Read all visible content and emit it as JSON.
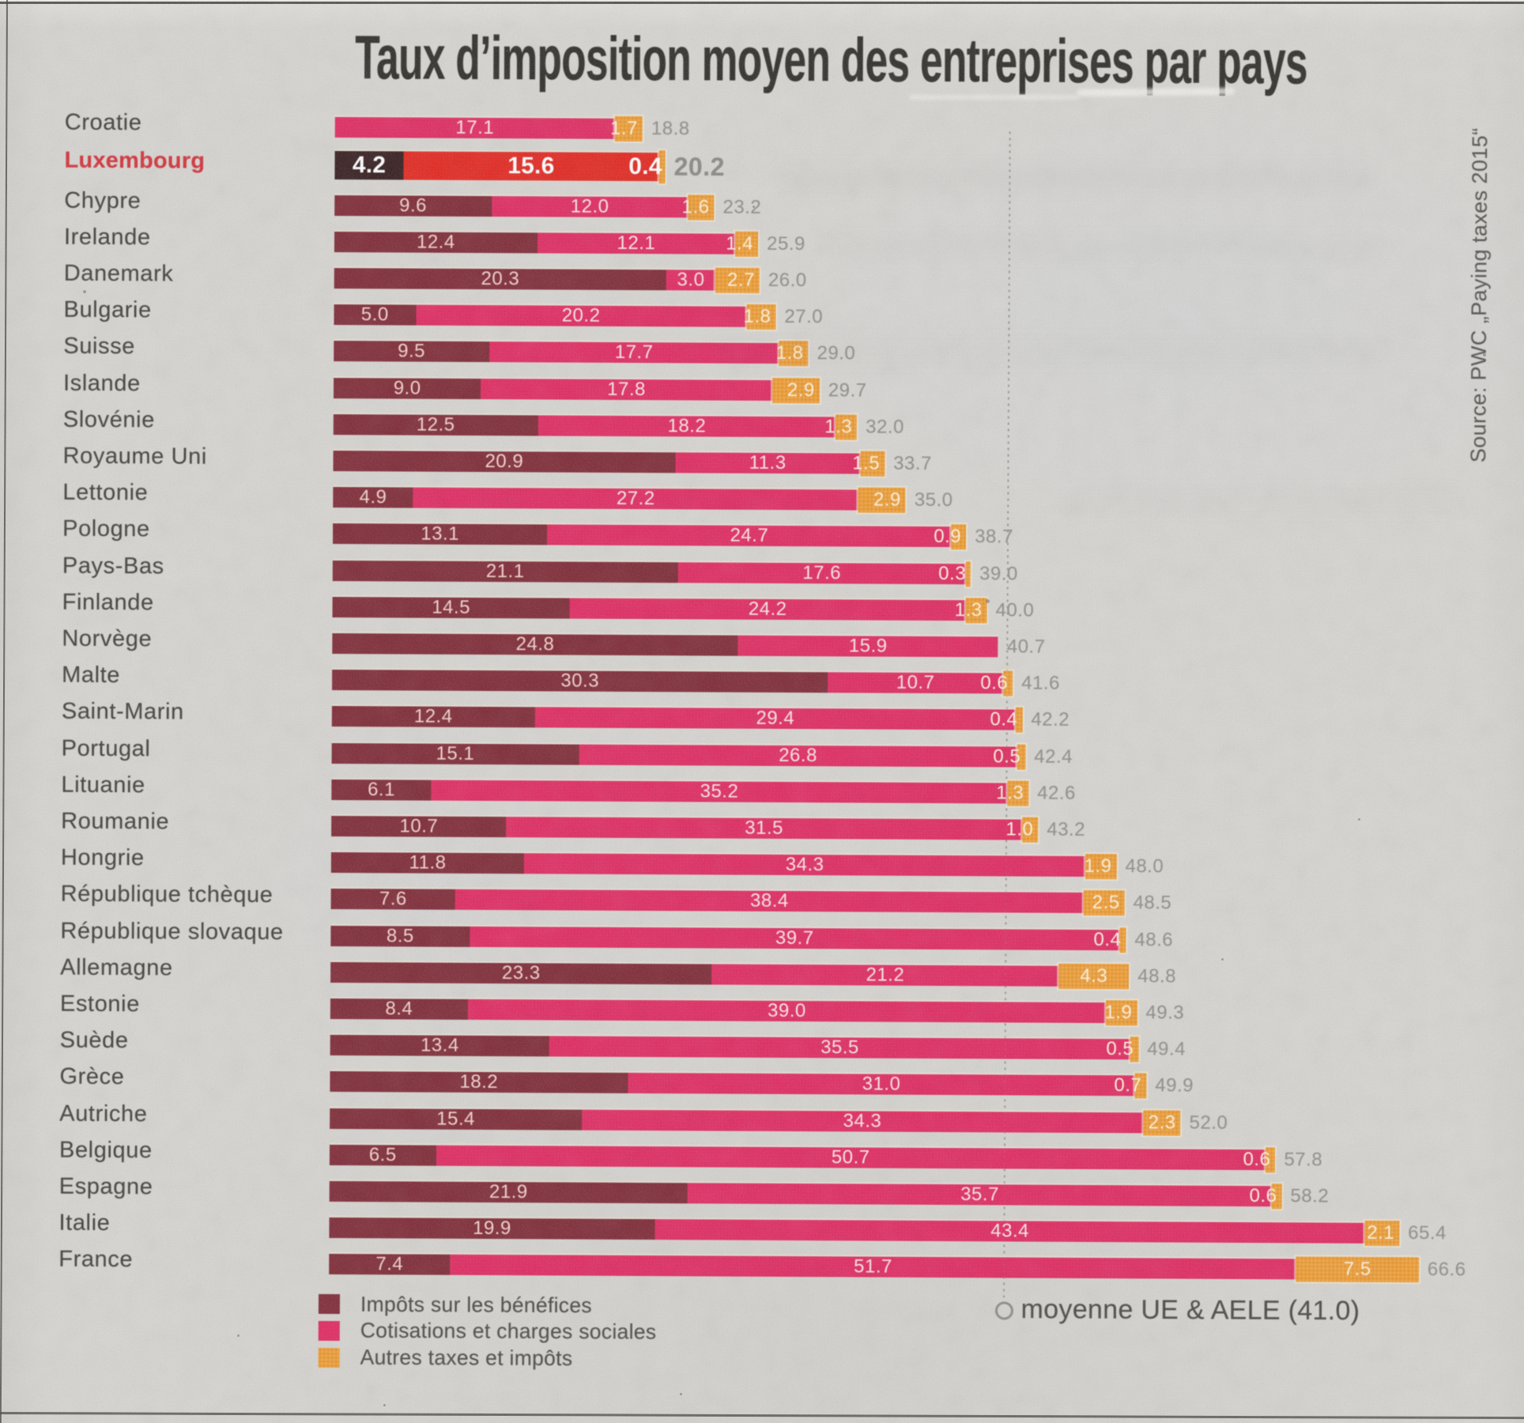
{
  "title": "Taux d’imposition moyen des entreprises par pays",
  "source": "Source: PWC „Paying taxes 2015“",
  "legend": {
    "items": [
      {
        "label": "Impôts sur les bénéfices",
        "series": "benefices",
        "color": "#7e2a36"
      },
      {
        "label": "Cotisations et charges sociales",
        "series": "cotisations",
        "color": "#df2960"
      },
      {
        "label": "Autres taxes et impôts",
        "series": "autres",
        "color": "#ee9c33"
      }
    ]
  },
  "average_marker": {
    "label": "moyenne UE & AELE (41.0)",
    "value": 41.0
  },
  "colors": {
    "paper": "#d7d5d1",
    "benefices": "#7e2a36",
    "cotisations": "#df2960",
    "autres": "#ee9c33",
    "highlight_benefices": "#351d1f",
    "highlight_cotisations": "#e2261f",
    "highlight_autres": "#ee9c33",
    "highlight_label": "#d2313a",
    "total_text": "#8f8d88",
    "title_text": "#2e2d2a"
  },
  "chart_data": {
    "type": "bar",
    "orientation": "horizontal",
    "stacked": true,
    "title": "Taux d’imposition moyen des entreprises par pays",
    "xlabel": "",
    "ylabel": "",
    "xlim": [
      0,
      70
    ],
    "grid": false,
    "legend_position": "bottom-left",
    "average_line": {
      "label": "moyenne UE & AELE (41.0)",
      "value": 41.0,
      "style": "dotted"
    },
    "highlight_category": "Luxembourg",
    "categories": [
      "Croatie",
      "Luxembourg",
      "Chypre",
      "Irelande",
      "Danemark",
      "Bulgarie",
      "Suisse",
      "Islande",
      "Slovénie",
      "Royaume Uni",
      "Lettonie",
      "Pologne",
      "Pays-Bas",
      "Finlande",
      "Norvège",
      "Malte",
      "Saint-Marin",
      "Portugal",
      "Lituanie",
      "Roumanie",
      "Hongrie",
      "République tchèque",
      "République slovaque",
      "Allemagne",
      "Estonie",
      "Suède",
      "Grèce",
      "Autriche",
      "Belgique",
      "Espagne",
      "Italie",
      "France"
    ],
    "series": [
      {
        "name": "Impôts sur les bénéfices",
        "values": [
          null,
          4.2,
          9.6,
          12.4,
          20.3,
          5.0,
          9.5,
          9.0,
          12.5,
          20.9,
          4.9,
          13.1,
          21.1,
          14.5,
          24.8,
          30.3,
          12.4,
          15.1,
          6.1,
          10.7,
          11.8,
          7.6,
          8.5,
          23.3,
          8.4,
          13.4,
          18.2,
          15.4,
          6.5,
          21.9,
          19.9,
          7.4
        ]
      },
      {
        "name": "Cotisations et charges sociales",
        "values": [
          17.1,
          15.6,
          12.0,
          12.1,
          3.0,
          20.2,
          17.7,
          17.8,
          18.2,
          11.3,
          27.2,
          24.7,
          17.6,
          24.2,
          15.9,
          10.7,
          29.4,
          26.8,
          35.2,
          31.5,
          34.3,
          38.4,
          39.7,
          21.2,
          39.0,
          35.5,
          31.0,
          34.3,
          50.7,
          35.7,
          43.4,
          51.7
        ]
      },
      {
        "name": "Autres taxes et impôts",
        "values": [
          1.7,
          0.4,
          1.6,
          1.4,
          2.7,
          1.8,
          1.8,
          2.9,
          1.3,
          1.5,
          2.9,
          0.9,
          0.3,
          1.3,
          null,
          0.6,
          0.4,
          0.5,
          1.3,
          1.0,
          1.9,
          2.5,
          0.4,
          4.3,
          1.9,
          0.5,
          0.7,
          2.3,
          0.6,
          0.6,
          2.1,
          7.5
        ]
      }
    ],
    "totals": [
      18.8,
      20.2,
      23.2,
      25.9,
      26.0,
      27.0,
      29.0,
      29.7,
      32.0,
      33.7,
      35.0,
      38.7,
      39.0,
      40.0,
      40.7,
      41.6,
      42.2,
      42.4,
      42.6,
      43.2,
      48.0,
      48.5,
      48.6,
      48.8,
      49.3,
      49.4,
      49.9,
      52.0,
      57.8,
      58.2,
      65.4,
      66.6
    ]
  }
}
